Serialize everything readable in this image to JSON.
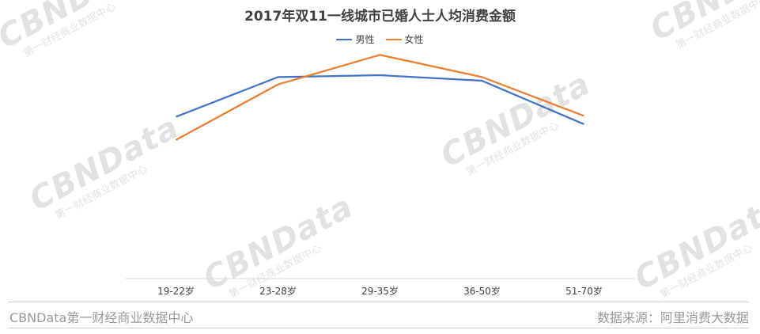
{
  "chart_data": {
    "type": "line",
    "title": "2017年双11一线城市已婚人士人均消费金额",
    "categories": [
      "19-22岁",
      "23-28岁",
      "29-35岁",
      "36-50岁",
      "51-70岁"
    ],
    "series": [
      {
        "name": "男性",
        "color": "#4472c4",
        "values": [
          195,
          238,
          240,
          234,
          187
        ]
      },
      {
        "name": "女性",
        "color": "#ed7d31",
        "values": [
          170,
          230,
          262,
          238,
          196
        ]
      }
    ],
    "ylim": [
      20,
      270
    ],
    "grid": false,
    "legend": "top-center",
    "xlabel": "",
    "ylabel": ""
  },
  "footer": {
    "source_left": "CBNData第一财经商业数据中心",
    "source_right": "数据来源：阿里消费大数据"
  },
  "watermark": {
    "brand": "CBNData",
    "subtitle": "第一财经商业数据中心"
  }
}
